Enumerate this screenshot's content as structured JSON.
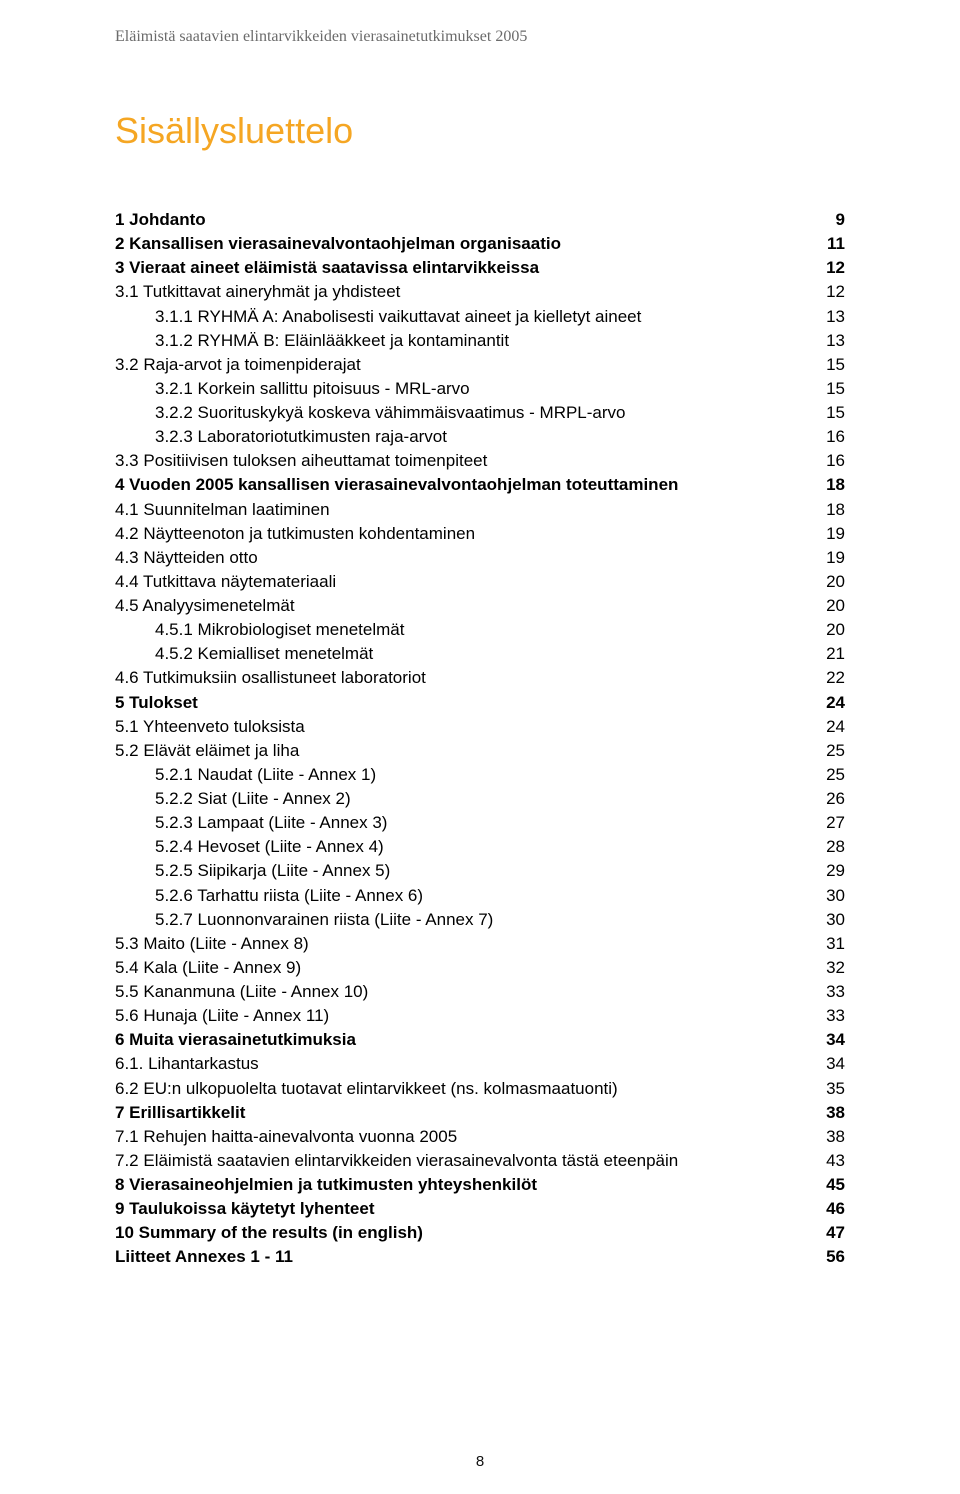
{
  "header": "Eläimistä saatavien elintarvikkeiden vierasainetutkimukset 2005",
  "title": "Sisällysluettelo",
  "title_color": "#f5a623",
  "page_number": "8",
  "toc": [
    {
      "label": "1   Johdanto",
      "page": "9",
      "bold": true,
      "level": 1
    },
    {
      "label": "2   Kansallisen vierasainevalvontaohjelman organisaatio",
      "page": "11",
      "bold": true,
      "level": 1
    },
    {
      "label": "3   Vieraat aineet eläimistä saatavissa elintarvikkeissa",
      "page": "12",
      "bold": true,
      "level": 1
    },
    {
      "label": "3.1 Tutkittavat aineryhmät ja yhdisteet",
      "page": "12",
      "bold": false,
      "level": 1
    },
    {
      "label": "3.1.1 RYHMÄ A: Anabolisesti vaikuttavat aineet ja kielletyt aineet",
      "page": "13",
      "bold": false,
      "level": 2
    },
    {
      "label": "3.1.2 RYHMÄ B: Eläinlääkkeet ja kontaminantit",
      "page": "13",
      "bold": false,
      "level": 2
    },
    {
      "label": "3.2  Raja-arvot ja toimenpiderajat",
      "page": "15",
      "bold": false,
      "level": 1
    },
    {
      "label": "3.2.1 Korkein sallittu pitoisuus - MRL-arvo",
      "page": "15",
      "bold": false,
      "level": 2
    },
    {
      "label": "3.2.2 Suorituskykyä koskeva vähimmäisvaatimus - MRPL-arvo",
      "page": "15",
      "bold": false,
      "level": 2
    },
    {
      "label": "3.2.3 Laboratoriotutkimusten raja-arvot",
      "page": "16",
      "bold": false,
      "level": 2
    },
    {
      "label": "3.3  Positiivisen tuloksen aiheuttamat toimenpiteet",
      "page": "16",
      "bold": false,
      "level": 1
    },
    {
      "label": "4   Vuoden 2005 kansallisen vierasainevalvontaohjelman toteuttaminen",
      "page": "18",
      "bold": true,
      "level": 1
    },
    {
      "label": "4.1  Suunnitelman laatiminen",
      "page": "18",
      "bold": false,
      "level": 1
    },
    {
      "label": "4.2  Näytteenoton ja tutkimusten kohdentaminen",
      "page": "19",
      "bold": false,
      "level": 1
    },
    {
      "label": "4.3  Näytteiden otto",
      "page": "19",
      "bold": false,
      "level": 1
    },
    {
      "label": "4.4  Tutkittava näytemateriaali",
      "page": "20",
      "bold": false,
      "level": 1
    },
    {
      "label": "4.5  Analyysimenetelmät",
      "page": "20",
      "bold": false,
      "level": 1
    },
    {
      "label": "4.5.1  Mikrobiologiset menetelmät",
      "page": "20",
      "bold": false,
      "level": 2
    },
    {
      "label": "4.5.2  Kemialliset menetelmät",
      "page": "21",
      "bold": false,
      "level": 2
    },
    {
      "label": "4.6 Tutkimuksiin osallistuneet laboratoriot",
      "page": "22",
      "bold": false,
      "level": 1
    },
    {
      "label": "5   Tulokset",
      "page": "24",
      "bold": true,
      "level": 1
    },
    {
      "label": "5.1  Yhteenveto tuloksista",
      "page": "24",
      "bold": false,
      "level": 1
    },
    {
      "label": "5.2  Elävät eläimet ja liha",
      "page": "25",
      "bold": false,
      "level": 1
    },
    {
      "label": "5.2.1  Naudat (Liite - Annex 1)",
      "page": "25",
      "bold": false,
      "level": 2
    },
    {
      "label": "5.2.2 Siat  (Liite - Annex 2)",
      "page": "26",
      "bold": false,
      "level": 2
    },
    {
      "label": "5.2.3 Lampaat (Liite - Annex 3)",
      "page": "27",
      "bold": false,
      "level": 2
    },
    {
      "label": "5.2.4 Hevoset (Liite - Annex 4)",
      "page": "28",
      "bold": false,
      "level": 2
    },
    {
      "label": "5.2.5 Siipikarja (Liite - Annex 5)",
      "page": "29",
      "bold": false,
      "level": 2
    },
    {
      "label": "5.2.6 Tarhattu riista (Liite - Annex 6)",
      "page": "30",
      "bold": false,
      "level": 2
    },
    {
      "label": "5.2.7 Luonnonvarainen riista (Liite - Annex 7)",
      "page": "30",
      "bold": false,
      "level": 2
    },
    {
      "label": "5.3 Maito (Liite - Annex 8)",
      "page": "31",
      "bold": false,
      "level": 1
    },
    {
      "label": "5.4 Kala (Liite - Annex 9)",
      "page": "32",
      "bold": false,
      "level": 1
    },
    {
      "label": "5.5 Kananmuna (Liite - Annex 10)",
      "page": "33",
      "bold": false,
      "level": 1
    },
    {
      "label": "5.6 Hunaja (Liite - Annex 11)",
      "page": "33",
      "bold": false,
      "level": 1
    },
    {
      "label": "6   Muita vierasainetutkimuksia",
      "page": "34",
      "bold": true,
      "level": 1
    },
    {
      "label": "6.1. Lihantarkastus",
      "page": "34",
      "bold": false,
      "level": 1
    },
    {
      "label": "6.2 EU:n ulkopuolelta tuotavat elintarvikkeet (ns. kolmasmaatuonti)",
      "page": "35",
      "bold": false,
      "level": 1
    },
    {
      "label": "7   Erillisartikkelit",
      "page": "38",
      "bold": true,
      "level": 1
    },
    {
      "label": "7.1 Rehujen haitta-ainevalvonta vuonna 2005",
      "page": "38",
      "bold": false,
      "level": 1
    },
    {
      "label": "7.2 Eläimistä saatavien elintarvikkeiden vierasainevalvonta tästä eteenpäin",
      "page": "43",
      "bold": false,
      "level": 1
    },
    {
      "label": "8   Vierasaineohjelmien ja tutkimusten yhteyshenkilöt",
      "page": "45",
      "bold": true,
      "level": 1
    },
    {
      "label": "9   Taulukoissa käytetyt lyhenteet",
      "page": "46",
      "bold": true,
      "level": 1
    },
    {
      "label": "10 Summary of the results (in english)",
      "page": "47",
      "bold": true,
      "level": 1
    },
    {
      "label": "Liitteet Annexes 1 - 11",
      "page": "56",
      "bold": true,
      "level": 1
    }
  ]
}
